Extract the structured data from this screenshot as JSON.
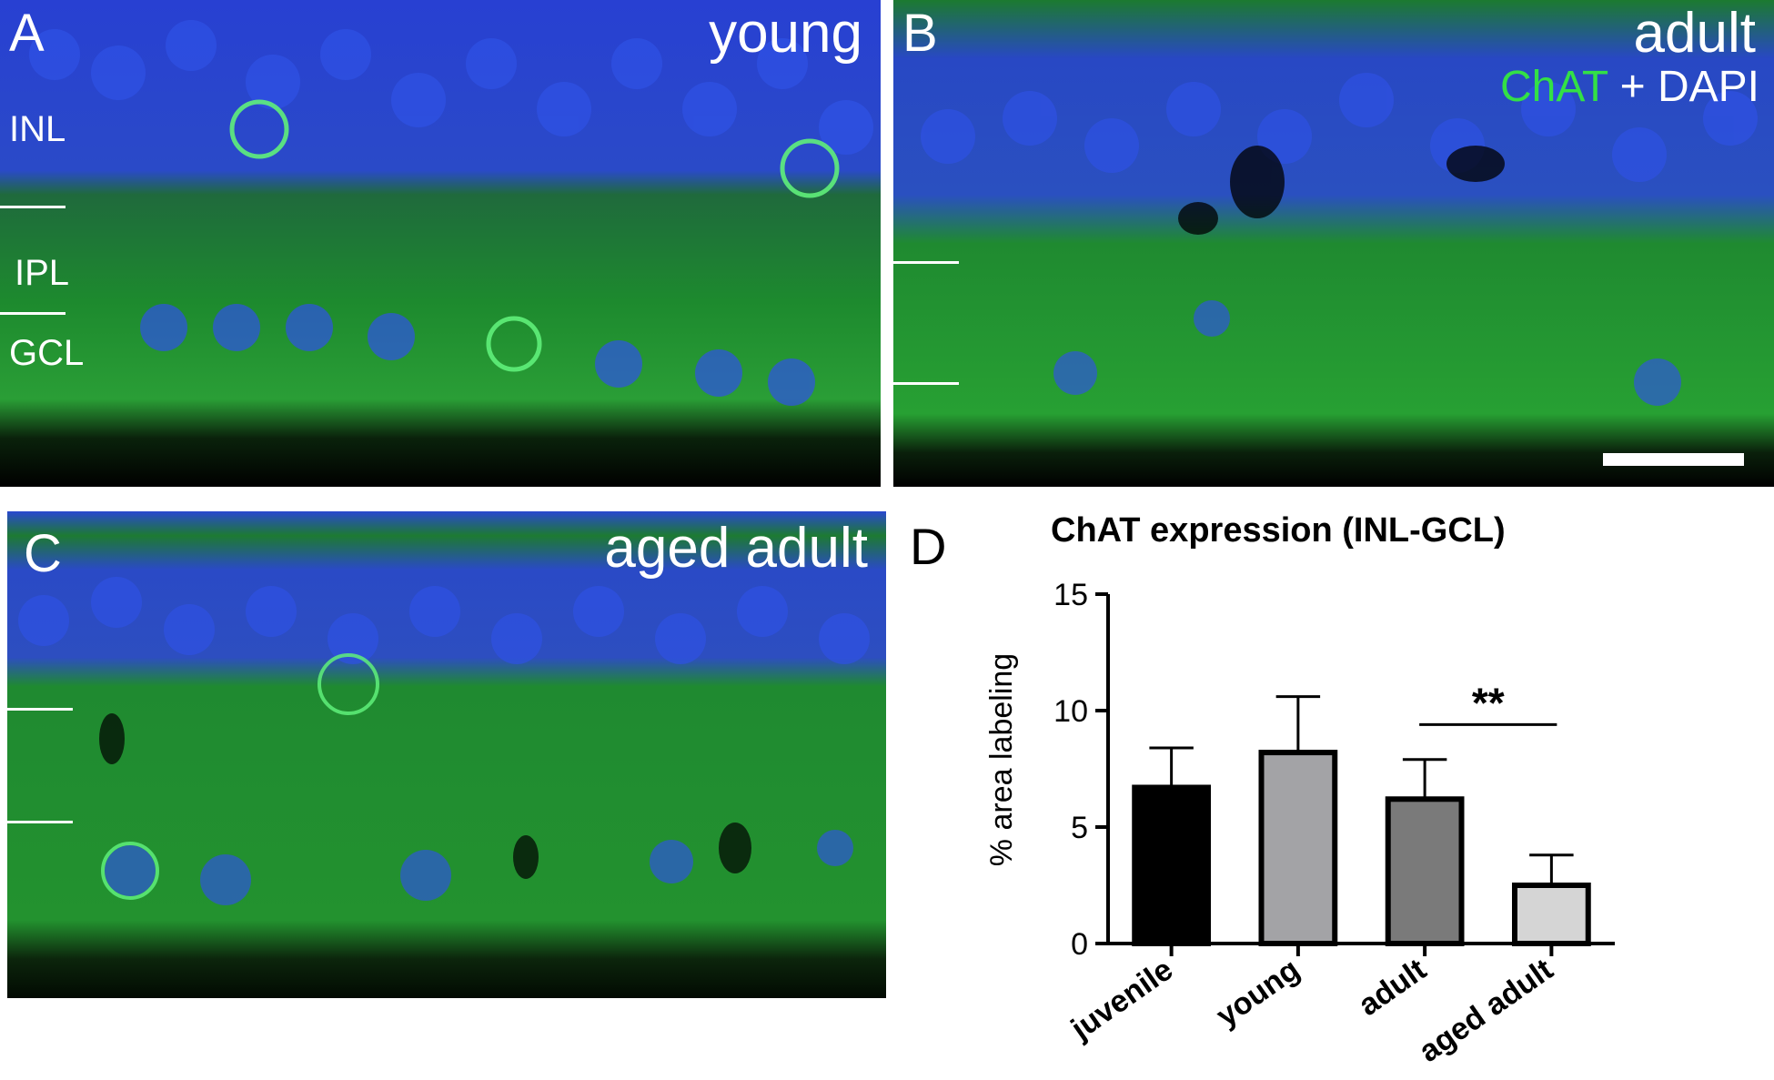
{
  "panels": {
    "a": {
      "letter": "A",
      "title": "young",
      "layers": [
        "INL",
        "IPL",
        "GCL"
      ]
    },
    "b": {
      "letter": "B",
      "title": "adult",
      "legend_green": "ChAT",
      "legend_rest": " + DAPI"
    },
    "c": {
      "letter": "C",
      "title": "aged adult"
    }
  },
  "colors": {
    "nuclei": "#2a46d6",
    "chat_signal": "#2fa83a",
    "background": "#0b2a0e"
  },
  "chart_data": {
    "type": "bar",
    "panel_letter": "D",
    "title": "ChAT expression (INL-GCL)",
    "ylabel": "% area labeling",
    "xlabel": "",
    "categories": [
      "juvenile",
      "young",
      "adult",
      "aged adult"
    ],
    "values": [
      6.7,
      8.2,
      6.2,
      2.5
    ],
    "errors": [
      1.7,
      2.4,
      1.7,
      1.3
    ],
    "bar_colors": [
      "#000000",
      "#a3a3a6",
      "#7a7a7a",
      "#d5d5d5"
    ],
    "ylim": [
      0,
      15
    ],
    "yticks": [
      0,
      5,
      10,
      15
    ],
    "significance": {
      "label": "**",
      "between": [
        "adult",
        "aged adult"
      ]
    },
    "grid": false
  }
}
